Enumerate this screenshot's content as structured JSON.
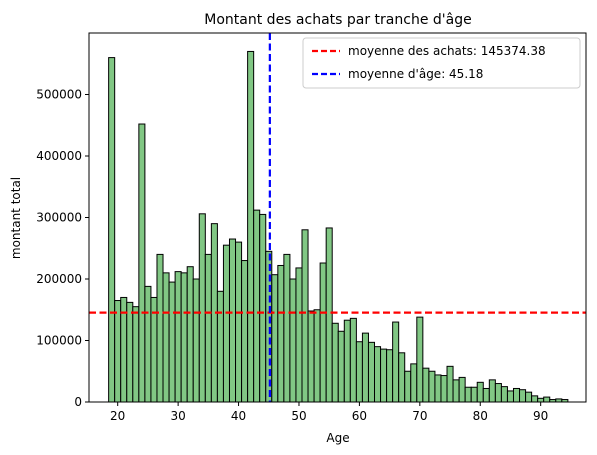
{
  "chart_data": {
    "type": "bar",
    "title": "Montant des achats par tranche d'âge",
    "xlabel": "Age",
    "ylabel": "montant total",
    "xlim": [
      15.25,
      97.5
    ],
    "ylim": [
      0,
      600000
    ],
    "xticks": [
      20,
      30,
      40,
      50,
      60,
      70,
      80,
      90
    ],
    "yticks": [
      0,
      100000,
      200000,
      300000,
      400000,
      500000
    ],
    "bar_color": "#81c784",
    "edge_color": "#000000",
    "x": [
      19,
      20,
      21,
      22,
      23,
      24,
      25,
      26,
      27,
      28,
      29,
      30,
      31,
      32,
      33,
      34,
      35,
      36,
      37,
      38,
      39,
      40,
      41,
      42,
      43,
      44,
      45,
      46,
      47,
      48,
      49,
      50,
      51,
      52,
      53,
      54,
      55,
      56,
      57,
      58,
      59,
      60,
      61,
      62,
      63,
      64,
      65,
      66,
      67,
      68,
      69,
      70,
      71,
      72,
      73,
      74,
      75,
      76,
      77,
      78,
      79,
      80,
      81,
      82,
      83,
      84,
      85,
      86,
      87,
      88,
      89,
      90,
      91,
      92,
      93,
      94
    ],
    "values": [
      560000,
      165000,
      170000,
      162000,
      155000,
      452000,
      188000,
      170000,
      240000,
      210000,
      195000,
      212000,
      210000,
      220000,
      200000,
      306000,
      240000,
      290000,
      180000,
      255000,
      265000,
      260000,
      230000,
      570000,
      312000,
      305000,
      245000,
      207000,
      222000,
      240000,
      200000,
      218000,
      280000,
      148000,
      150000,
      226000,
      283000,
      128000,
      115000,
      133000,
      136000,
      98000,
      112000,
      97000,
      90000,
      86000,
      85000,
      130000,
      80000,
      50000,
      62000,
      138000,
      55000,
      50000,
      44000,
      43000,
      58000,
      36000,
      40000,
      24000,
      24000,
      32000,
      22000,
      36000,
      30000,
      25000,
      18000,
      22000,
      20000,
      16000,
      10000,
      6000,
      8000,
      4000,
      5000,
      4000
    ],
    "bar_width": 1.0,
    "hlines": [
      {
        "y": 145374.38,
        "color": "#ff0000",
        "label": "moyenne des achats: 145374.38"
      }
    ],
    "vlines": [
      {
        "x": 45.18,
        "color": "#0000ff",
        "label": "moyenne d'âge: 45.18"
      }
    ],
    "legend_position": "top-right",
    "grid": false
  }
}
